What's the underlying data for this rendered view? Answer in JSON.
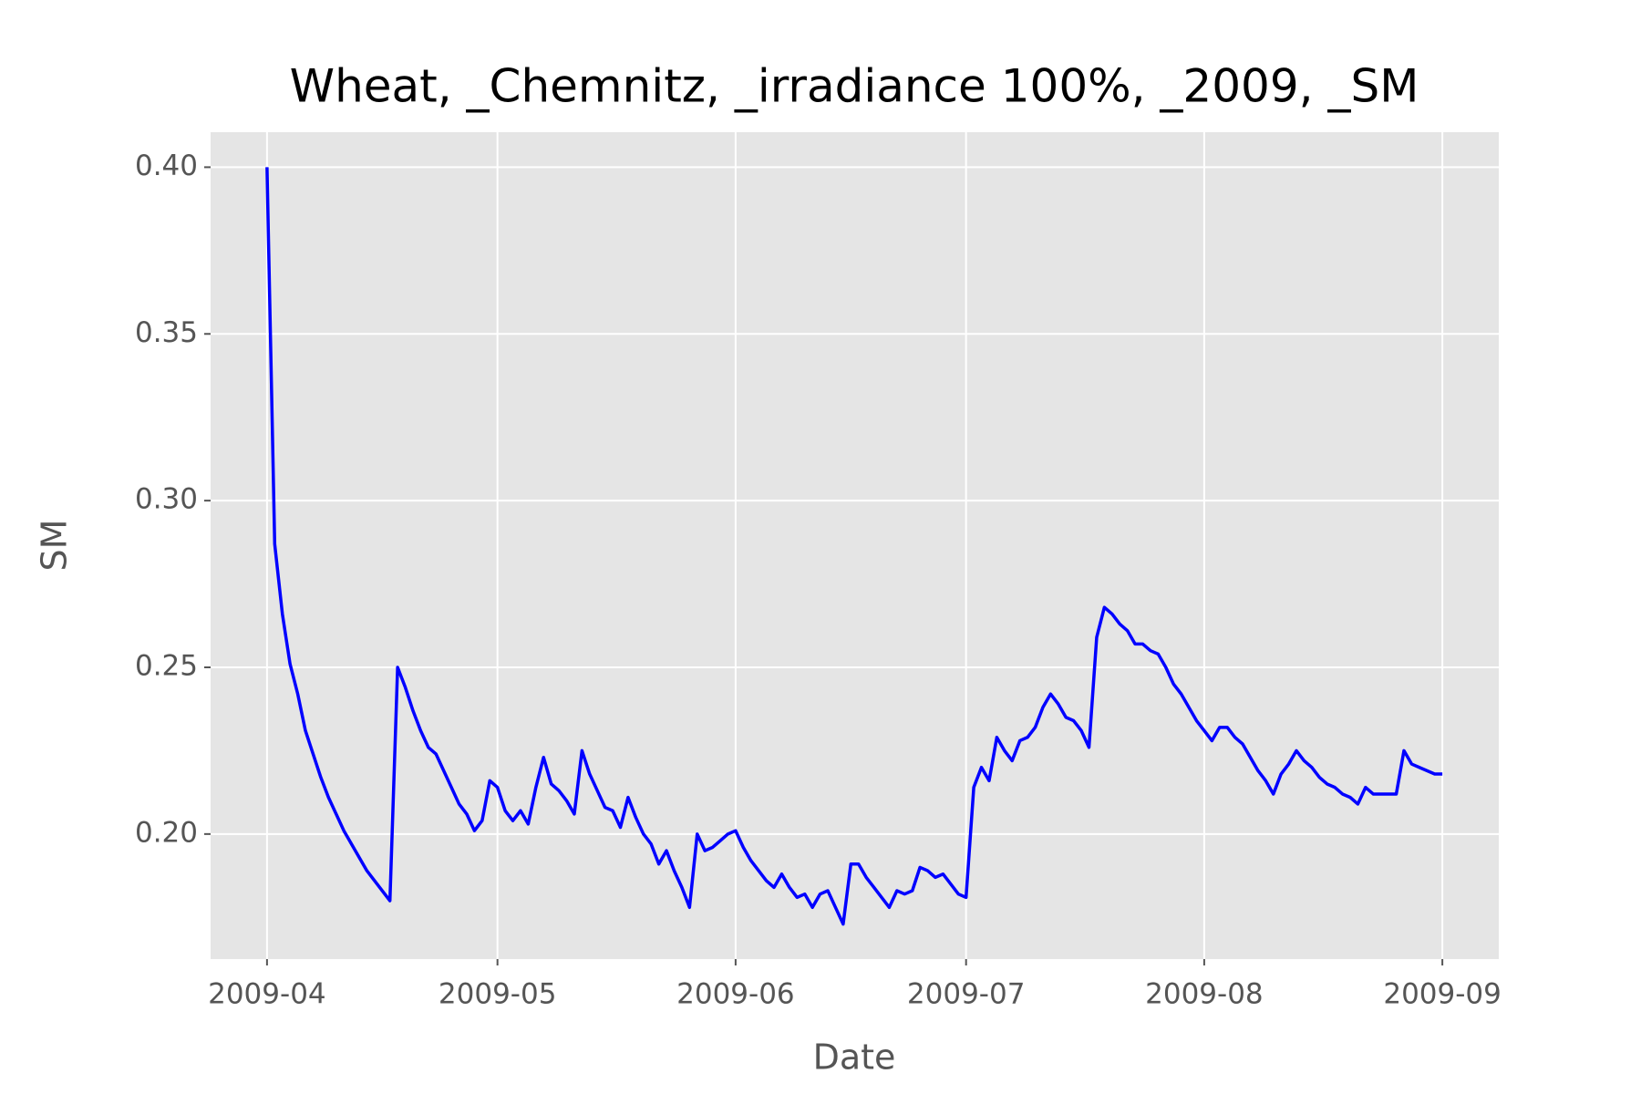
{
  "chart_data": {
    "type": "line",
    "title": "Wheat, _Chemnitz, _irradiance 100%, _2009, _SM",
    "x_label": "Date",
    "y_label": "SM",
    "categories": [
      "2009-04",
      null,
      null,
      null,
      null,
      null,
      null,
      null,
      null,
      null,
      null,
      null,
      null,
      null,
      null,
      null,
      null,
      null,
      null,
      null,
      null,
      null,
      null,
      null,
      null,
      null,
      null,
      null,
      null,
      null,
      "2009-05",
      null,
      null,
      null,
      null,
      null,
      null,
      null,
      null,
      null,
      null,
      null,
      null,
      null,
      null,
      null,
      null,
      null,
      null,
      null,
      null,
      null,
      null,
      null,
      null,
      null,
      null,
      null,
      null,
      null,
      null,
      "2009-06",
      null,
      null,
      null,
      null,
      null,
      null,
      null,
      null,
      null,
      null,
      null,
      null,
      null,
      null,
      null,
      null,
      null,
      null,
      null,
      null,
      null,
      null,
      null,
      null,
      null,
      null,
      null,
      null,
      null,
      "2009-07",
      null,
      null,
      null,
      null,
      null,
      null,
      null,
      null,
      null,
      null,
      null,
      null,
      null,
      null,
      null,
      null,
      null,
      null,
      null,
      null,
      null,
      null,
      null,
      null,
      null,
      null,
      null,
      null,
      null,
      null,
      "2009-08",
      null,
      null,
      null,
      null,
      null,
      null,
      null,
      null,
      null,
      null,
      null,
      null,
      null,
      null,
      null,
      null,
      null,
      null,
      null,
      null,
      null,
      null,
      null,
      null,
      null,
      null,
      null,
      null,
      null,
      null,
      "2009-09"
    ],
    "values": [
      0.4,
      0.287,
      0.266,
      0.251,
      0.242,
      0.231,
      0.224,
      0.217,
      0.211,
      0.206,
      0.201,
      0.197,
      0.193,
      0.189,
      0.186,
      0.183,
      0.18,
      0.25,
      0.244,
      0.237,
      0.231,
      0.226,
      0.224,
      0.219,
      0.214,
      0.209,
      0.206,
      0.201,
      0.204,
      0.216,
      0.214,
      0.207,
      0.204,
      0.207,
      0.203,
      0.214,
      0.223,
      0.215,
      0.213,
      0.21,
      0.206,
      0.225,
      0.218,
      0.213,
      0.208,
      0.207,
      0.202,
      0.211,
      0.205,
      0.2,
      0.197,
      0.191,
      0.195,
      0.189,
      0.184,
      0.178,
      0.2,
      0.195,
      0.196,
      0.198,
      0.2,
      0.201,
      0.196,
      0.192,
      0.189,
      0.186,
      0.184,
      0.188,
      0.184,
      0.181,
      0.182,
      0.178,
      0.182,
      0.183,
      0.178,
      0.173,
      0.191,
      0.191,
      0.187,
      0.184,
      0.181,
      0.178,
      0.183,
      0.182,
      0.183,
      0.19,
      0.189,
      0.187,
      0.188,
      0.185,
      0.182,
      0.181,
      0.214,
      0.22,
      0.216,
      0.229,
      0.225,
      0.222,
      0.228,
      0.229,
      0.232,
      0.238,
      0.242,
      0.239,
      0.235,
      0.234,
      0.231,
      0.226,
      0.259,
      0.268,
      0.266,
      0.263,
      0.261,
      0.257,
      0.257,
      0.255,
      0.254,
      0.25,
      0.245,
      0.242,
      0.238,
      0.234,
      0.231,
      0.228,
      0.232,
      0.232,
      0.229,
      0.227,
      0.223,
      0.219,
      0.216,
      0.212,
      0.218,
      0.221,
      0.225,
      0.222,
      0.22,
      0.217,
      0.215,
      0.214,
      0.212,
      0.211,
      0.209,
      0.214,
      0.212,
      0.212,
      0.212,
      0.212,
      0.225,
      0.221,
      0.22,
      0.219,
      0.218,
      0.218
    ],
    "color": "#0000ff",
    "ylim": [
      0.1625,
      0.4105
    ],
    "yticks": [
      {
        "value": 0.2,
        "label": "0.20"
      },
      {
        "value": 0.25,
        "label": "0.25"
      },
      {
        "value": 0.3,
        "label": "0.30"
      },
      {
        "value": 0.35,
        "label": "0.35"
      },
      {
        "value": 0.4,
        "label": "0.40"
      }
    ],
    "grid": true
  }
}
